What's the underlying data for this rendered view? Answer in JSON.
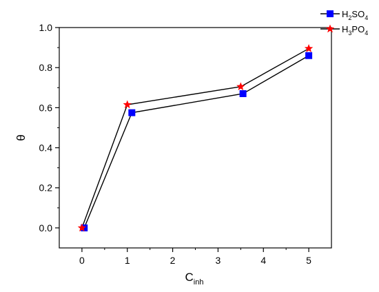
{
  "chart_data": {
    "type": "line",
    "xlabel": {
      "main": "C",
      "sub": "inh"
    },
    "ylabel": "θ",
    "xlim": [
      -0.5,
      5.5
    ],
    "ylim": [
      -0.1,
      1.0
    ],
    "xticks": [
      0,
      1,
      2,
      3,
      4,
      5
    ],
    "yticks": [
      0.0,
      0.2,
      0.4,
      0.6,
      0.8,
      1.0
    ],
    "ytick_labels": [
      "0.0",
      "0.2",
      "0.4",
      "0.6",
      "0.8",
      "1.0"
    ],
    "grid": false,
    "legend_position": "top-right",
    "series": [
      {
        "name_parts": [
          {
            "t": "H"
          },
          {
            "t": "2",
            "sub": true
          },
          {
            "t": "SO"
          },
          {
            "t": "4",
            "sub": true
          }
        ],
        "marker": "square",
        "color": "#0000ff",
        "x": [
          0.05,
          1.1,
          3.55,
          5.0
        ],
        "y": [
          0.0,
          0.575,
          0.67,
          0.86
        ]
      },
      {
        "name_parts": [
          {
            "t": "H"
          },
          {
            "t": "3",
            "sub": true
          },
          {
            "t": "PO"
          },
          {
            "t": "4",
            "sub": true
          }
        ],
        "marker": "star",
        "color": "#ff0000",
        "x": [
          0.0,
          1.0,
          3.5,
          5.0
        ],
        "y": [
          0.0,
          0.615,
          0.705,
          0.895
        ]
      }
    ]
  }
}
